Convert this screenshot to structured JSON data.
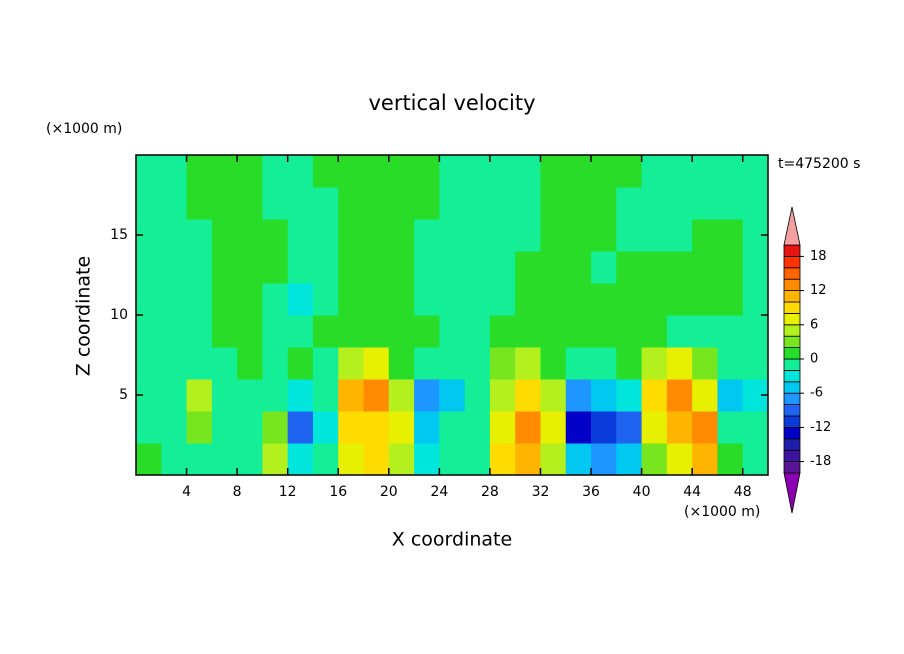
{
  "chart_data": {
    "type": "contour",
    "title": "vertical velocity",
    "x_label": "X coordinate",
    "y_label": "Z coordinate",
    "x_unit": "(×1000 m)",
    "y_unit": "(×1000 m)",
    "time_label": "t=475200 s",
    "xlim": [
      0,
      50
    ],
    "ylim": [
      0,
      20
    ],
    "xticks": [
      4,
      8,
      12,
      16,
      20,
      24,
      28,
      32,
      36,
      40,
      44,
      48
    ],
    "yticks": [
      5,
      10,
      15
    ],
    "x": [
      1,
      3,
      5,
      7,
      9,
      11,
      13,
      15,
      17,
      19,
      21,
      23,
      25,
      27,
      29,
      31,
      33,
      35,
      37,
      39,
      41,
      43,
      45,
      47,
      49
    ],
    "y": [
      1,
      3,
      5,
      7,
      9,
      11,
      13,
      15,
      17,
      19
    ],
    "z": [
      [
        0.5,
        -1,
        -2,
        -2,
        -1,
        4,
        -4,
        -2,
        6,
        8,
        4,
        -3,
        -2,
        -1,
        8,
        10,
        4,
        -6,
        -8,
        -6,
        3,
        6,
        10,
        0,
        -2
      ],
      [
        -1,
        -1,
        2,
        -1,
        -2,
        2,
        -10,
        -3,
        8,
        8,
        6,
        -5,
        -2,
        -2,
        6,
        12,
        6,
        -14,
        -12,
        -10,
        6,
        10,
        12,
        -2,
        -2
      ],
      [
        -2,
        -1,
        4,
        -1,
        -2,
        -1,
        -4,
        -2,
        10,
        12,
        4,
        -8,
        -6,
        -1,
        4,
        8,
        4,
        -8,
        -6,
        -3,
        8,
        12,
        6,
        -6,
        -3
      ],
      [
        -1,
        -2,
        -1,
        -1,
        0,
        -1,
        1,
        -1,
        4,
        6,
        1,
        -2,
        -1,
        -1,
        2,
        4,
        1,
        -2,
        -1,
        0,
        4,
        6,
        2,
        -2,
        -1
      ],
      [
        -1,
        -1,
        -1,
        1,
        1,
        -1,
        -1,
        1,
        1,
        1,
        1,
        1,
        -1,
        -1,
        1,
        1,
        1,
        1,
        1,
        1,
        1,
        -1,
        -1,
        -1,
        -1
      ],
      [
        -1,
        -1,
        -1,
        1,
        1,
        -1,
        -3,
        -1,
        1,
        1,
        1,
        -1,
        -1,
        -1,
        -1,
        1,
        1,
        1,
        1,
        1,
        1,
        1,
        1,
        1,
        -1
      ],
      [
        -1,
        -1,
        -1,
        1,
        1,
        1,
        -1,
        -1,
        1,
        1,
        1,
        -1,
        -1,
        -1,
        -1,
        1,
        1,
        1,
        -1,
        1,
        1,
        1,
        1,
        1,
        -1
      ],
      [
        -1,
        -1,
        -1,
        1,
        1,
        1,
        -1,
        -1,
        1,
        1,
        1,
        -1,
        -1,
        -1,
        -1,
        -1,
        1,
        1,
        1,
        -1,
        -1,
        -1,
        1,
        1,
        -1
      ],
      [
        -1,
        -1,
        1,
        1,
        1,
        -1,
        -1,
        -1,
        1,
        1,
        1,
        1,
        -1,
        -1,
        -1,
        -1,
        1,
        1,
        1,
        -1,
        -1,
        -1,
        -1,
        -1,
        -1
      ],
      [
        -1,
        -1,
        1,
        1,
        1,
        -1,
        -1,
        1,
        1,
        1,
        1,
        1,
        -1,
        -1,
        -1,
        -1,
        1,
        1,
        1,
        1,
        -1,
        -1,
        -1,
        -1,
        -1
      ]
    ],
    "levels": [
      -20,
      -18,
      -16,
      -14,
      -12,
      -10,
      -8,
      -6,
      -4,
      -2,
      0,
      2,
      4,
      6,
      8,
      10,
      12,
      14,
      16,
      18,
      20
    ],
    "colors": [
      "#5a1496",
      "#3c14a0",
      "#1e1eaa",
      "#0000c8",
      "#0a3cdc",
      "#1e64f0",
      "#1e96ff",
      "#00c8f0",
      "#00e6dc",
      "#14ee96",
      "#28dc28",
      "#78e61e",
      "#b4f01e",
      "#e6f000",
      "#ffdc00",
      "#ffb400",
      "#ff8c00",
      "#ff6400",
      "#ff3200",
      "#e61414"
    ],
    "under_color": "#8c00b4",
    "over_color": "#f4a0a0",
    "colorbar_ticks": [
      -18,
      -12,
      -6,
      0,
      6,
      12,
      18
    ]
  }
}
